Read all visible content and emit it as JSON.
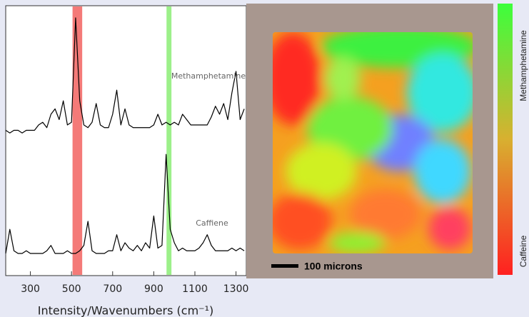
{
  "chart_data": {
    "type": "line",
    "x_label": "Intensity/Wavenumbers (cm⁻¹)",
    "x": [
      180,
      200,
      220,
      240,
      260,
      280,
      300,
      320,
      340,
      360,
      380,
      400,
      420,
      440,
      460,
      480,
      500,
      520,
      540,
      560,
      580,
      600,
      620,
      640,
      660,
      680,
      700,
      720,
      740,
      760,
      780,
      800,
      820,
      840,
      860,
      880,
      900,
      920,
      940,
      960,
      980,
      1000,
      1020,
      1040,
      1060,
      1080,
      1100,
      1120,
      1140,
      1160,
      1180,
      1200,
      1220,
      1240,
      1260,
      1280,
      1300,
      1320,
      1340
    ],
    "xlim": [
      180,
      1350
    ],
    "xticks": [
      300,
      500,
      700,
      900,
      1100,
      1300
    ],
    "ylim": [
      0,
      100
    ],
    "series": [
      {
        "name": "Methamphetamine",
        "color": "#000000",
        "values": [
          54,
          53,
          54,
          54,
          53,
          54,
          54,
          54,
          56,
          57,
          55,
          60,
          62,
          58,
          65,
          56,
          57,
          96,
          65,
          56,
          55,
          57,
          64,
          56,
          55,
          55,
          60,
          69,
          56,
          62,
          56,
          55,
          55,
          55,
          55,
          55,
          56,
          60,
          56,
          57,
          56,
          57,
          56,
          60,
          58,
          56,
          56,
          56,
          56,
          56,
          59,
          63,
          60,
          64,
          58,
          68,
          76,
          58,
          62
        ]
      },
      {
        "name": "Caffiene",
        "color": "#000000",
        "values": [
          8,
          17,
          9,
          8,
          8,
          9,
          8,
          8,
          8,
          8,
          9,
          11,
          8,
          8,
          8,
          9,
          8,
          8,
          9,
          11,
          20,
          9,
          8,
          8,
          8,
          9,
          9,
          15,
          9,
          12,
          10,
          9,
          11,
          9,
          12,
          10,
          22,
          10,
          11,
          45,
          17,
          12,
          9,
          10,
          9,
          9,
          9,
          10,
          12,
          15,
          11,
          9,
          9,
          9,
          9,
          10,
          9,
          10,
          9
        ]
      }
    ],
    "bands": [
      {
        "range": [
          505,
          552
        ],
        "color": "#f47a78"
      },
      {
        "range": [
          962,
          986
        ],
        "color": "#9cf08a"
      }
    ],
    "map": {
      "scale_bar": "100 microns",
      "colorbar": {
        "top_label": "Methamphetamine",
        "bottom_label": "Caffeine",
        "top_color": "#3cff3c",
        "bottom_color": "#ff2020"
      }
    }
  }
}
